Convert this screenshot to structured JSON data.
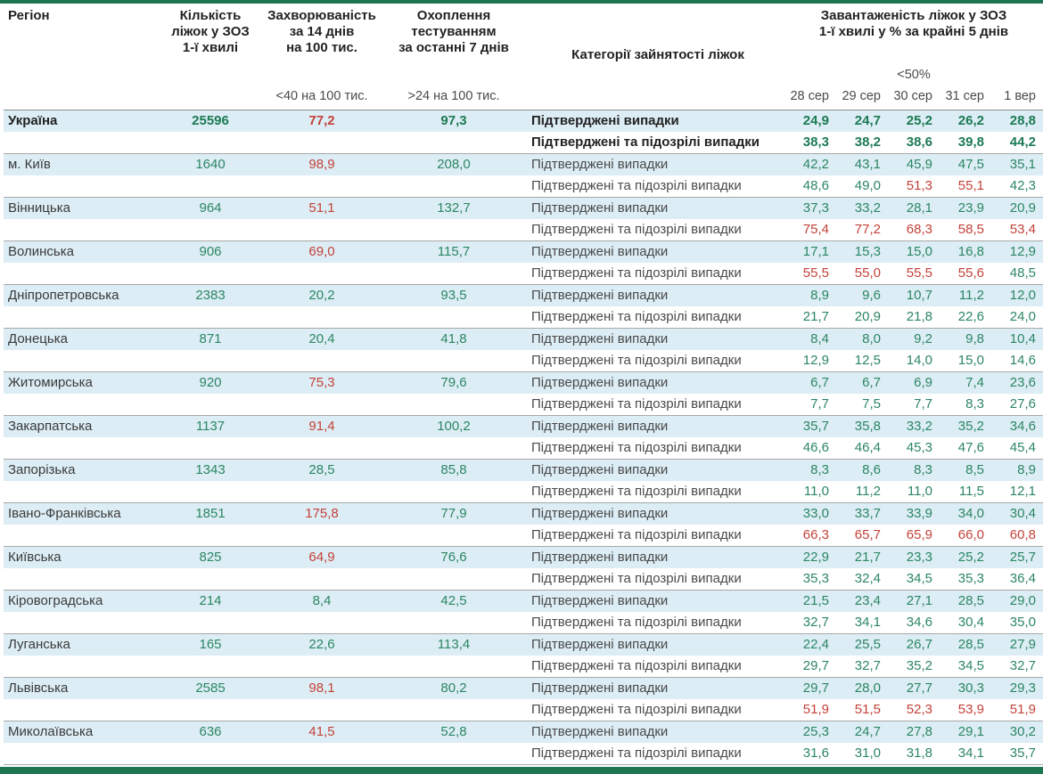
{
  "header": {
    "region": "Регіон",
    "beds": "Кількість\nліжок у ЗОЗ\n1-ї хвилі",
    "incidence": "Захворюваність\nза 14 днів\nна 100 тис.",
    "testing": "Охоплення\nтестуванням\nза останні 7 днів",
    "category": "Категорії зайнятості ліжок",
    "occupancy": "Завантаженість ліжок у ЗОЗ\n1-ї хвилі у % за крайні 5 днів",
    "incidence_threshold_label": "<40 на 100 тис.",
    "testing_threshold_label": ">24 на 100 тис.",
    "occupancy_threshold_label": "<50%"
  },
  "row_labels": {
    "confirmed": "Підтверджені випадки",
    "suspected": "Підтверджені та підозрілі випадки"
  },
  "colors": {
    "green_value": "#2c8663",
    "red_value": "#c4423a",
    "row_highlight": "#dcedf5",
    "edge_bar": "#1e7551"
  },
  "chart_data": {
    "type": "table",
    "title": "Завантаженість ліжок у ЗОЗ 1-ї хвилі у % за крайні 5 днів",
    "dates": [
      "28 сер",
      "29 сер",
      "30 сер",
      "31 сер",
      "1 вер"
    ],
    "incidence_red_at": 40,
    "occupancy_red_at": 50,
    "regions": [
      {
        "name": "Україна",
        "bold": true,
        "beds": "25596",
        "incidence": "77,2",
        "testing": "97,3",
        "confirmed": [
          "24,9",
          "24,7",
          "25,2",
          "26,2",
          "28,8"
        ],
        "suspected": [
          "38,3",
          "38,2",
          "38,6",
          "39,8",
          "44,2"
        ]
      },
      {
        "name": "м. Київ",
        "beds": "1640",
        "incidence": "98,9",
        "testing": "208,0",
        "confirmed": [
          "42,2",
          "43,1",
          "45,9",
          "47,5",
          "35,1"
        ],
        "suspected": [
          "48,6",
          "49,0",
          "51,3",
          "55,1",
          "42,3"
        ]
      },
      {
        "name": "Вінницька",
        "beds": "964",
        "incidence": "51,1",
        "testing": "132,7",
        "confirmed": [
          "37,3",
          "33,2",
          "28,1",
          "23,9",
          "20,9"
        ],
        "suspected": [
          "75,4",
          "77,2",
          "68,3",
          "58,5",
          "53,4"
        ]
      },
      {
        "name": "Волинська",
        "beds": "906",
        "incidence": "69,0",
        "testing": "115,7",
        "confirmed": [
          "17,1",
          "15,3",
          "15,0",
          "16,8",
          "12,9"
        ],
        "suspected": [
          "55,5",
          "55,0",
          "55,5",
          "55,6",
          "48,5"
        ]
      },
      {
        "name": "Дніпропетровська",
        "beds": "2383",
        "incidence": "20,2",
        "testing": "93,5",
        "confirmed": [
          "8,9",
          "9,6",
          "10,7",
          "11,2",
          "12,0"
        ],
        "suspected": [
          "21,7",
          "20,9",
          "21,8",
          "22,6",
          "24,0"
        ]
      },
      {
        "name": "Донецька",
        "beds": "871",
        "incidence": "20,4",
        "testing": "41,8",
        "confirmed": [
          "8,4",
          "8,0",
          "9,2",
          "9,8",
          "10,4"
        ],
        "suspected": [
          "12,9",
          "12,5",
          "14,0",
          "15,0",
          "14,6"
        ]
      },
      {
        "name": "Житомирська",
        "beds": "920",
        "incidence": "75,3",
        "testing": "79,6",
        "confirmed": [
          "6,7",
          "6,7",
          "6,9",
          "7,4",
          "23,6"
        ],
        "suspected": [
          "7,7",
          "7,5",
          "7,7",
          "8,3",
          "27,6"
        ]
      },
      {
        "name": "Закарпатська",
        "beds": "1137",
        "incidence": "91,4",
        "testing": "100,2",
        "confirmed": [
          "35,7",
          "35,8",
          "33,2",
          "35,2",
          "34,6"
        ],
        "suspected": [
          "46,6",
          "46,4",
          "45,3",
          "47,6",
          "45,4"
        ]
      },
      {
        "name": "Запорізька",
        "beds": "1343",
        "incidence": "28,5",
        "testing": "85,8",
        "confirmed": [
          "8,3",
          "8,6",
          "8,3",
          "8,5",
          "8,9"
        ],
        "suspected": [
          "11,0",
          "11,2",
          "11,0",
          "11,5",
          "12,1"
        ]
      },
      {
        "name": "Івано-Франківська",
        "beds": "1851",
        "incidence": "175,8",
        "testing": "77,9",
        "confirmed": [
          "33,0",
          "33,7",
          "33,9",
          "34,0",
          "30,4"
        ],
        "suspected": [
          "66,3",
          "65,7",
          "65,9",
          "66,0",
          "60,8"
        ]
      },
      {
        "name": "Київська",
        "beds": "825",
        "incidence": "64,9",
        "testing": "76,6",
        "confirmed": [
          "22,9",
          "21,7",
          "23,3",
          "25,2",
          "25,7"
        ],
        "suspected": [
          "35,3",
          "32,4",
          "34,5",
          "35,3",
          "36,4"
        ]
      },
      {
        "name": "Кіровоградська",
        "beds": "214",
        "incidence": "8,4",
        "testing": "42,5",
        "confirmed": [
          "21,5",
          "23,4",
          "27,1",
          "28,5",
          "29,0"
        ],
        "suspected": [
          "32,7",
          "34,1",
          "34,6",
          "30,4",
          "35,0"
        ]
      },
      {
        "name": "Луганська",
        "beds": "165",
        "incidence": "22,6",
        "testing": "113,4",
        "confirmed": [
          "22,4",
          "25,5",
          "26,7",
          "28,5",
          "27,9"
        ],
        "suspected": [
          "29,7",
          "32,7",
          "35,2",
          "34,5",
          "32,7"
        ]
      },
      {
        "name": "Львівська",
        "beds": "2585",
        "incidence": "98,1",
        "testing": "80,2",
        "confirmed": [
          "29,7",
          "28,0",
          "27,7",
          "30,3",
          "29,3"
        ],
        "suspected": [
          "51,9",
          "51,5",
          "52,3",
          "53,9",
          "51,9"
        ]
      },
      {
        "name": "Миколаївська",
        "beds": "636",
        "incidence": "41,5",
        "testing": "52,8",
        "confirmed": [
          "25,3",
          "24,7",
          "27,8",
          "29,1",
          "30,2"
        ],
        "suspected": [
          "31,6",
          "31,0",
          "31,8",
          "34,1",
          "35,7"
        ]
      }
    ]
  }
}
